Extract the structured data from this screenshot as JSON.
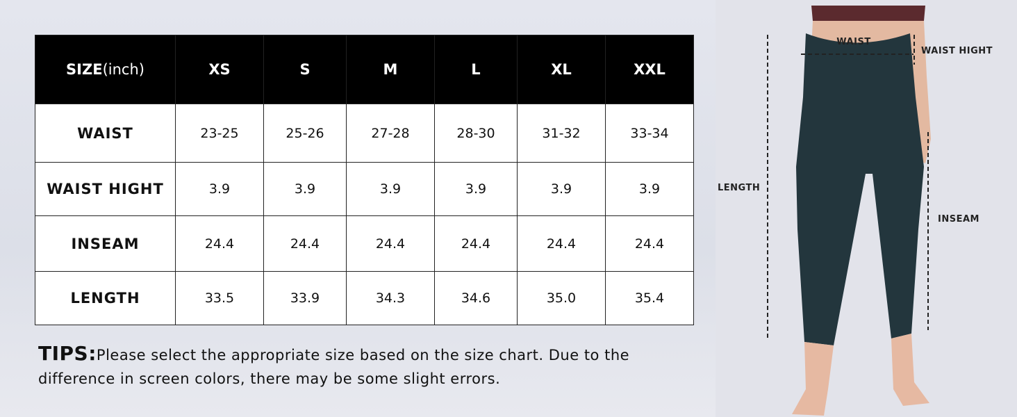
{
  "table": {
    "header": {
      "label": "SIZE",
      "unit": "(inch)",
      "sizes": [
        "XS",
        "S",
        "M",
        "L",
        "XL",
        "XXL"
      ]
    },
    "rows": [
      {
        "label": "WAIST",
        "values": [
          "23-25",
          "25-26",
          "27-28",
          "28-30",
          "31-32",
          "33-34"
        ]
      },
      {
        "label": "WAIST HIGHT",
        "values": [
          "3.9",
          "3.9",
          "3.9",
          "3.9",
          "3.9",
          "3.9"
        ]
      },
      {
        "label": "INSEAM",
        "values": [
          "24.4",
          "24.4",
          "24.4",
          "24.4",
          "24.4",
          "24.4"
        ]
      },
      {
        "label": "LENGTH",
        "values": [
          "33.5",
          "33.9",
          "34.3",
          "34.6",
          "35.0",
          "35.4"
        ]
      }
    ]
  },
  "tips": {
    "label": "TIPS:",
    "text": "Please select the appropriate size based on the size chart. Due to the difference in screen colors, there may be some slight errors."
  },
  "figure": {
    "waist": "WAIST",
    "waist_hight": "WAIST HIGHT",
    "length": "LENGTH",
    "inseam": "INSEAM"
  }
}
